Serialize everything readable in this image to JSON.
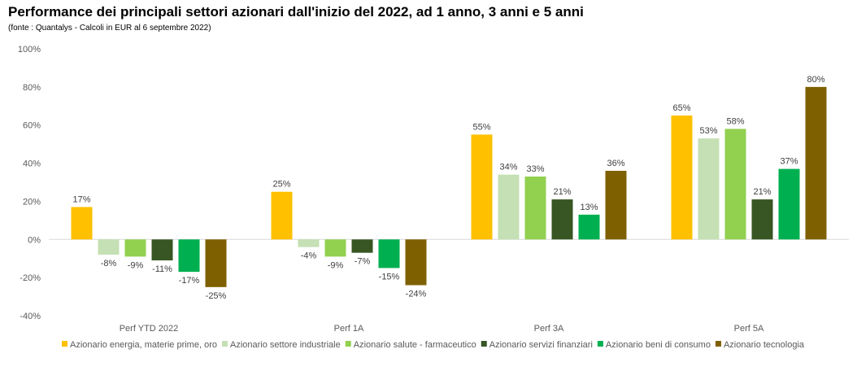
{
  "header": {
    "title": "Performance dei principali settori azionari dall'inizio del 2022, ad 1 anno, 3 anni e 5 anni",
    "subtitle": "(fonte : Quantalys - Calcoli in EUR al 6 septembre 2022)"
  },
  "chart_data": {
    "type": "bar",
    "categories": [
      "Perf YTD 2022",
      "Perf 1A",
      "Perf 3A",
      "Perf 5A"
    ],
    "series": [
      {
        "name": "Azionario energia, materie prime, oro",
        "color": "#FFC000",
        "values": [
          17,
          25,
          55,
          65
        ]
      },
      {
        "name": "Azionario settore industriale",
        "color": "#C5E0B4",
        "values": [
          -8,
          -4,
          34,
          53
        ]
      },
      {
        "name": "Azionario salute - farmaceutico",
        "color": "#92D050",
        "values": [
          -9,
          -9,
          33,
          58
        ]
      },
      {
        "name": "Azionario servizi finanziari",
        "color": "#375623",
        "values": [
          -11,
          -7,
          21,
          21
        ]
      },
      {
        "name": "Azionario beni di consumo",
        "color": "#00B050",
        "values": [
          -17,
          -15,
          13,
          37
        ]
      },
      {
        "name": "Azionario tecnologia",
        "color": "#7F6000",
        "values": [
          -25,
          -24,
          36,
          80
        ]
      }
    ],
    "ylim": [
      -40,
      100
    ],
    "yticks": [
      -40,
      -20,
      0,
      20,
      40,
      60,
      80,
      100
    ],
    "ytick_format": "%",
    "grid": false,
    "legend": "bottom"
  }
}
